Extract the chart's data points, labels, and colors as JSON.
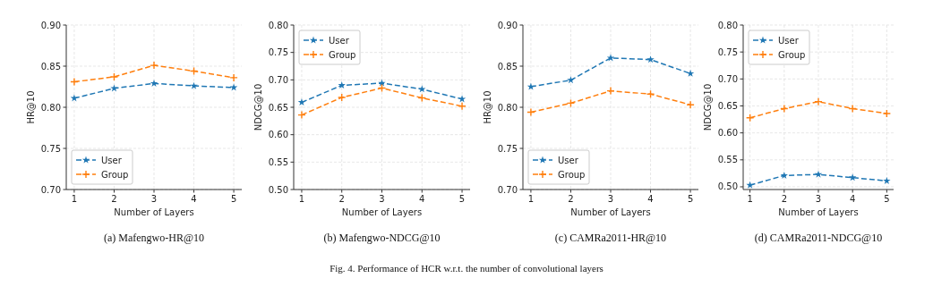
{
  "chart_data": [
    {
      "type": "line",
      "title": "(a) Mafengwo-HR@10",
      "xlabel": "Number of Layers",
      "ylabel": "HR@10",
      "x": [
        1,
        2,
        3,
        4,
        5
      ],
      "xlim": [
        0.8,
        5.2
      ],
      "xticks": [
        1,
        2,
        3,
        4,
        5
      ],
      "ylim": [
        0.7,
        0.9
      ],
      "yticks": [
        {
          "value": 0.7,
          "label": "0.70"
        },
        {
          "value": 0.75,
          "label": "0.75"
        },
        {
          "value": 0.8,
          "label": "0.80"
        },
        {
          "value": 0.85,
          "label": "0.85"
        },
        {
          "value": 0.9,
          "label": "0.90"
        }
      ],
      "grid": true,
      "legend": "bottom left",
      "line_style": "dashed",
      "annotations": [
        "Fig. 4.  Performance of HCR w.r.t. the number of convolutional layers"
      ],
      "series": [
        {
          "name": "User",
          "color": "#1f77b4",
          "marker": "star",
          "values": [
            0.811,
            0.823,
            0.829,
            0.826,
            0.824
          ]
        },
        {
          "name": "Group",
          "color": "#ff7f0e",
          "marker": "cross",
          "values": [
            0.831,
            0.837,
            0.851,
            0.844,
            0.836
          ]
        }
      ]
    },
    {
      "type": "line",
      "title": "(b) Mafengwo-NDCG@10",
      "xlabel": "Number of Layers",
      "ylabel": "NDCG@10",
      "x": [
        1,
        2,
        3,
        4,
        5
      ],
      "xlim": [
        0.8,
        5.2
      ],
      "xticks": [
        1,
        2,
        3,
        4,
        5
      ],
      "ylim": [
        0.5,
        0.8
      ],
      "yticks": [
        {
          "value": 0.5,
          "label": "0.50"
        },
        {
          "value": 0.55,
          "label": "0.55"
        },
        {
          "value": 0.6,
          "label": "0.60"
        },
        {
          "value": 0.65,
          "label": "0.65"
        },
        {
          "value": 0.7,
          "label": "0.70"
        },
        {
          "value": 0.75,
          "label": "0.75"
        },
        {
          "value": 0.8,
          "label": "0.80"
        }
      ],
      "grid": true,
      "legend": "top left",
      "line_style": "dashed",
      "series": [
        {
          "name": "User",
          "color": "#1f77b4",
          "marker": "star",
          "values": [
            0.659,
            0.69,
            0.694,
            0.683,
            0.665
          ]
        },
        {
          "name": "Group",
          "color": "#ff7f0e",
          "marker": "cross",
          "values": [
            0.636,
            0.668,
            0.685,
            0.667,
            0.652
          ]
        }
      ]
    },
    {
      "type": "line",
      "title": "(c) CAMRa2011-HR@10",
      "xlabel": "Number of Layers",
      "ylabel": "HR@10",
      "x": [
        1,
        2,
        3,
        4,
        5
      ],
      "xlim": [
        0.8,
        5.2
      ],
      "xticks": [
        1,
        2,
        3,
        4,
        5
      ],
      "ylim": [
        0.7,
        0.9
      ],
      "yticks": [
        {
          "value": 0.7,
          "label": "0.70"
        },
        {
          "value": 0.75,
          "label": "0.75"
        },
        {
          "value": 0.8,
          "label": "0.80"
        },
        {
          "value": 0.85,
          "label": "0.85"
        },
        {
          "value": 0.9,
          "label": "0.90"
        }
      ],
      "grid": true,
      "legend": "bottom left",
      "line_style": "dashed",
      "series": [
        {
          "name": "User",
          "color": "#1f77b4",
          "marker": "star",
          "values": [
            0.825,
            0.833,
            0.86,
            0.858,
            0.841
          ]
        },
        {
          "name": "Group",
          "color": "#ff7f0e",
          "marker": "cross",
          "values": [
            0.794,
            0.805,
            0.82,
            0.816,
            0.803
          ]
        }
      ]
    },
    {
      "type": "line",
      "title": "(d) CAMRa2011-NDCG@10",
      "xlabel": "Number of Layers",
      "ylabel": "NDCG@10",
      "x": [
        1,
        2,
        3,
        4,
        5
      ],
      "xlim": [
        0.8,
        5.2
      ],
      "xticks": [
        1,
        2,
        3,
        4,
        5
      ],
      "ylim": [
        0.495,
        0.8
      ],
      "yticks": [
        {
          "value": 0.5,
          "label": "0.50"
        },
        {
          "value": 0.55,
          "label": "0.55"
        },
        {
          "value": 0.6,
          "label": "0.60"
        },
        {
          "value": 0.65,
          "label": "0.65"
        },
        {
          "value": 0.7,
          "label": "0.70"
        },
        {
          "value": 0.75,
          "label": "0.75"
        },
        {
          "value": 0.8,
          "label": "0.80"
        }
      ],
      "grid": true,
      "legend": "top left",
      "line_style": "dashed",
      "series": [
        {
          "name": "User",
          "color": "#1f77b4",
          "marker": "star",
          "values": [
            0.503,
            0.521,
            0.523,
            0.517,
            0.511
          ]
        },
        {
          "name": "Group",
          "color": "#ff7f0e",
          "marker": "cross",
          "values": [
            0.628,
            0.645,
            0.658,
            0.645,
            0.636
          ]
        }
      ]
    }
  ]
}
